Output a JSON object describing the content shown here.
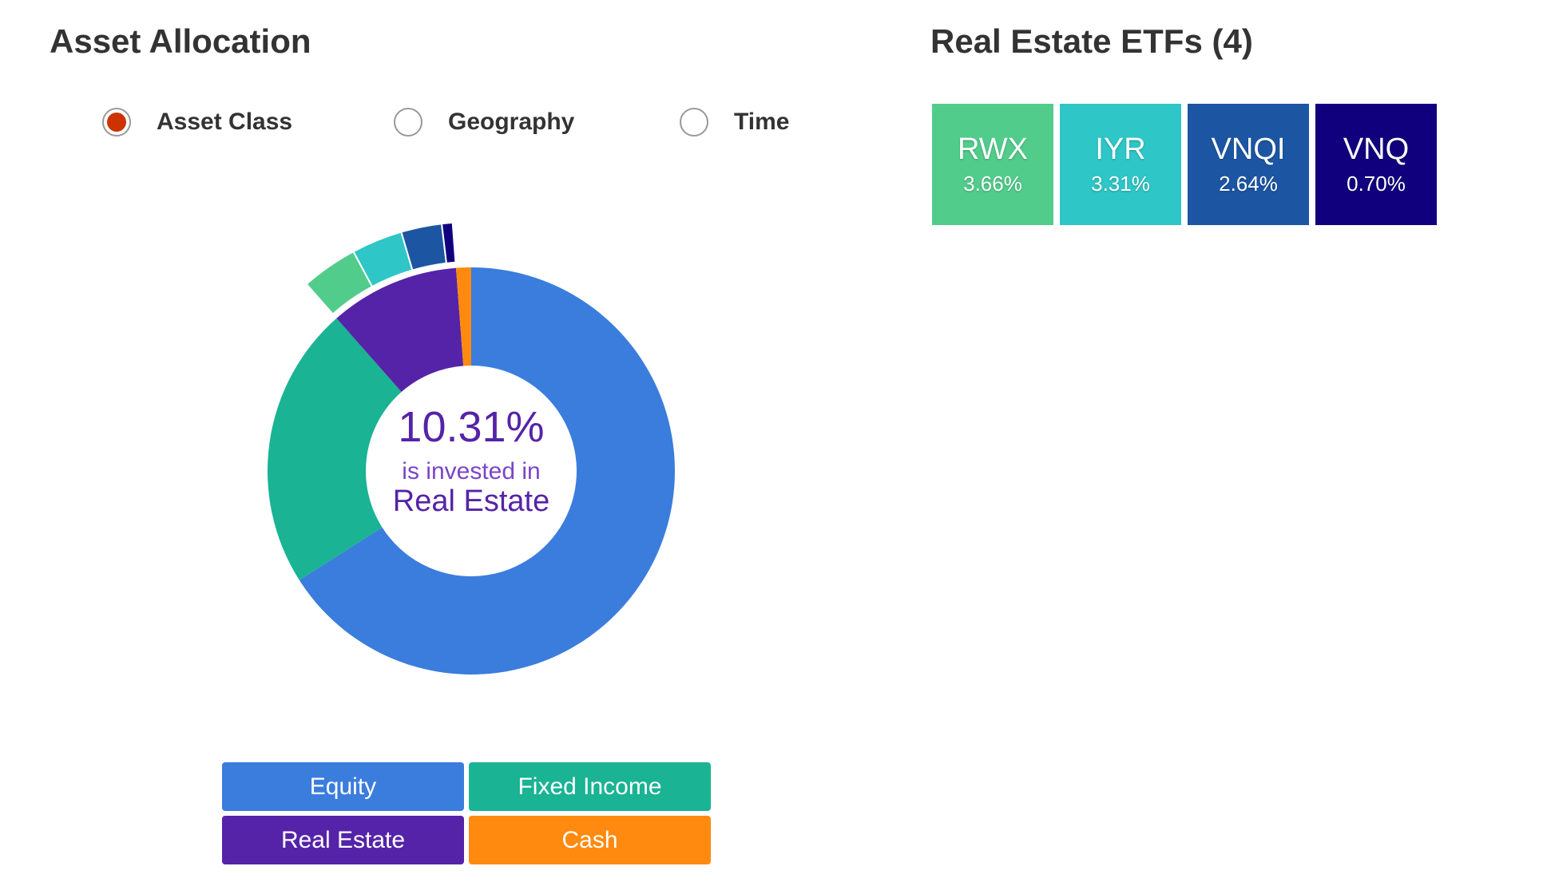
{
  "asset_allocation": {
    "title": "Asset Allocation",
    "radios": [
      {
        "label": "Asset Class",
        "selected": true
      },
      {
        "label": "Geography",
        "selected": false
      },
      {
        "label": "Time",
        "selected": false
      }
    ],
    "center": {
      "value": "10.31%",
      "line": "is invested in",
      "category": "Real Estate"
    },
    "legend": [
      {
        "label": "Equity",
        "color": "#3b7ddd"
      },
      {
        "label": "Fixed Income",
        "color": "#1ab394"
      },
      {
        "label": "Real Estate",
        "color": "#5523a8"
      },
      {
        "label": "Cash",
        "color": "#ff8a0f"
      }
    ]
  },
  "chart_data": {
    "type": "donut",
    "title": "",
    "categories": [
      "Equity",
      "Fixed Income",
      "Real Estate",
      "Cash"
    ],
    "values": [
      66.0,
      22.5,
      10.31,
      1.19
    ],
    "colors": [
      "#3b7ddd",
      "#1ab394",
      "#5523a8",
      "#ff8a0f"
    ],
    "selected": "Real Estate",
    "breakdown": {
      "categories": [
        "RWX",
        "IYR",
        "VNQI",
        "VNQ"
      ],
      "values": [
        3.66,
        3.31,
        2.64,
        0.7
      ],
      "colors": [
        "#52cc8b",
        "#2ec6c6",
        "#1c56a3",
        "#11007d"
      ]
    }
  },
  "real_estate_etfs": {
    "title": "Real Estate ETFs (4)",
    "tiles": [
      {
        "name": "RWX",
        "pct": "3.66%",
        "color": "#52cc8b"
      },
      {
        "name": "IYR",
        "pct": "3.31%",
        "color": "#2ec6c6"
      },
      {
        "name": "VNQI",
        "pct": "2.64%",
        "color": "#1c56a3"
      },
      {
        "name": "VNQ",
        "pct": "0.70%",
        "color": "#11007d"
      }
    ]
  }
}
